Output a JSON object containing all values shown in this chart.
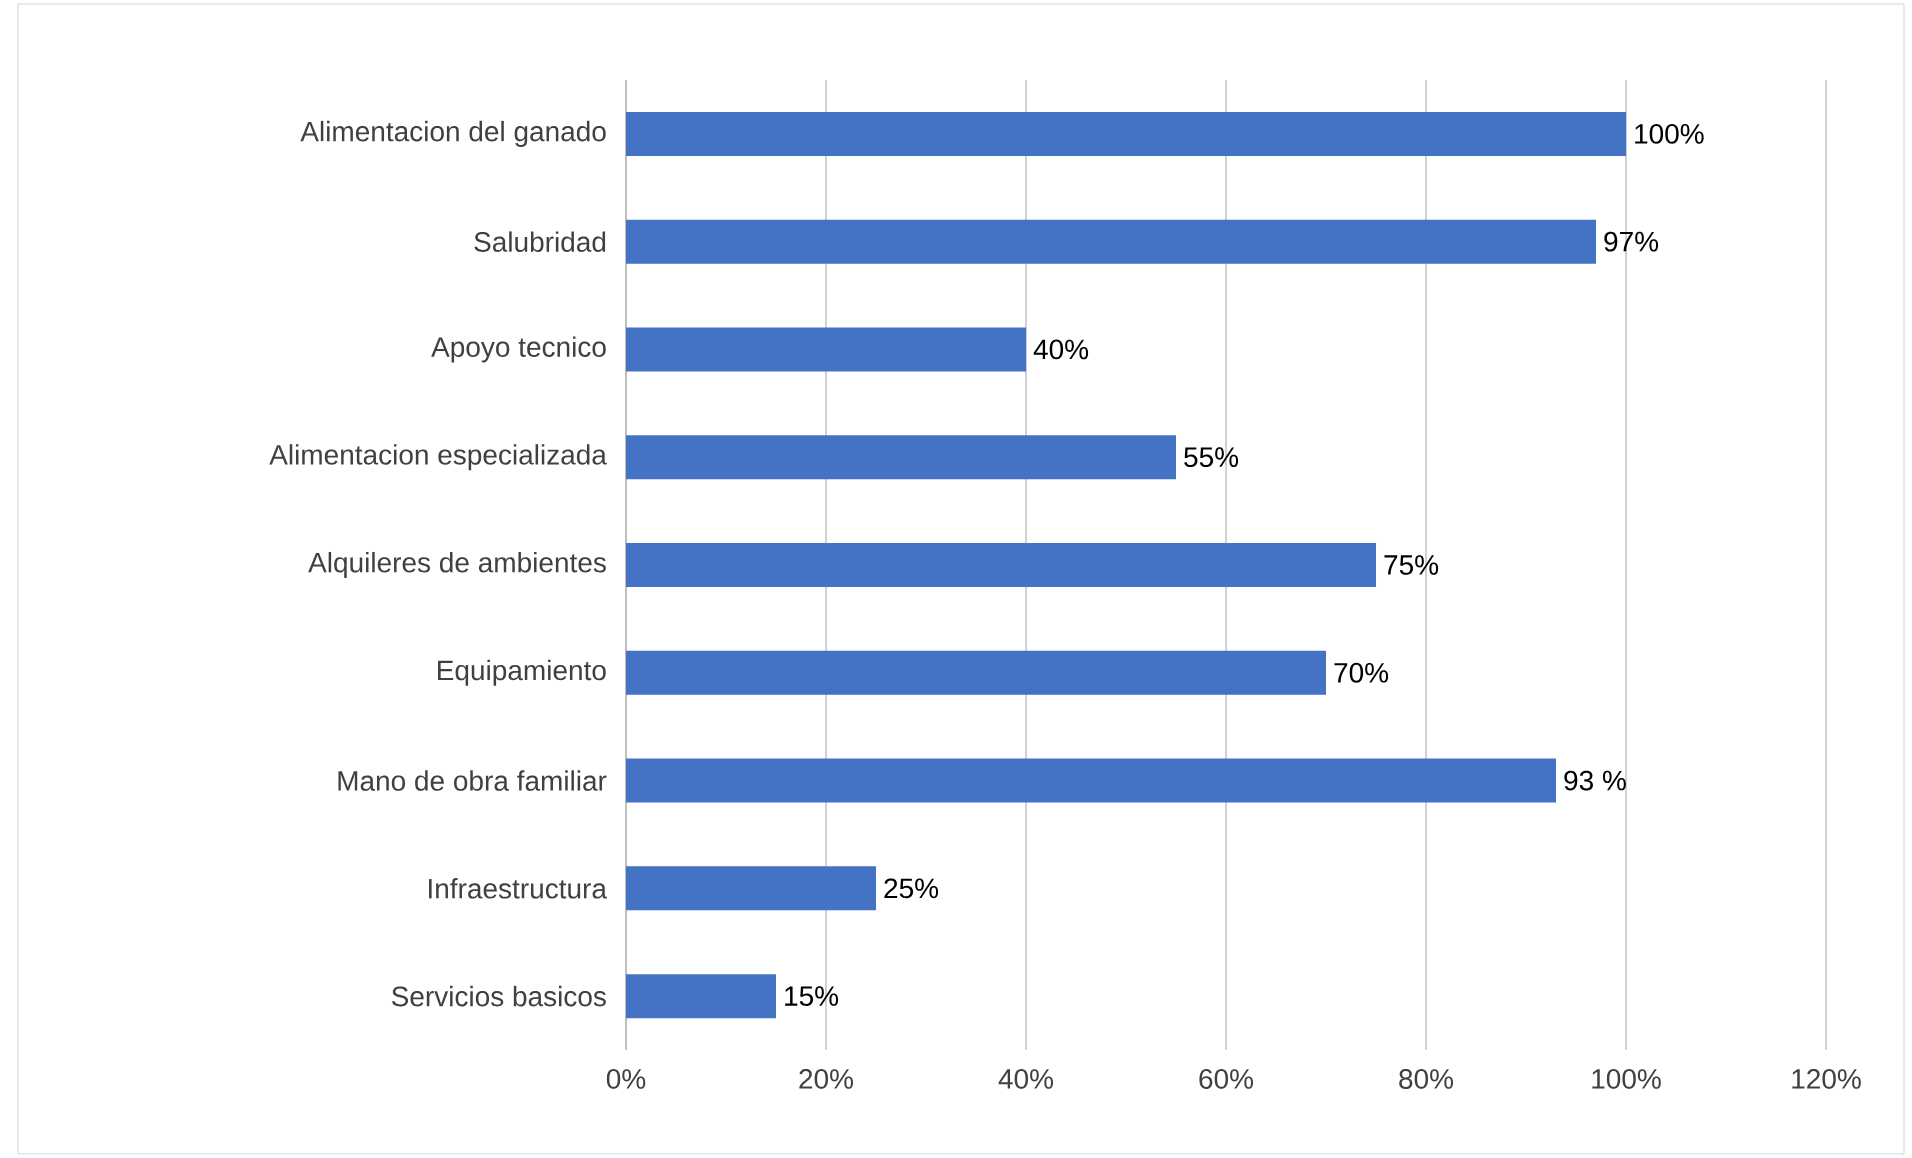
{
  "chart_data": {
    "type": "bar",
    "orientation": "horizontal",
    "categories": [
      "Alimentacion del ganado",
      "Salubridad",
      "Apoyo tecnico",
      "Alimentacion especializada",
      "Alquileres de ambientes",
      "Equipamiento",
      "Mano de obra familiar",
      "Infraestructura",
      "Servicios basicos"
    ],
    "values": [
      100,
      97,
      40,
      55,
      75,
      70,
      93,
      25,
      15
    ],
    "value_labels": [
      "100%",
      "97%",
      "40%",
      "55%",
      "75%",
      "70%",
      "93 %",
      "25%",
      "15%"
    ],
    "color": "#4472c4",
    "xlim": [
      0,
      120
    ],
    "xticks": [
      {
        "value": 0,
        "label": "0%"
      },
      {
        "value": 20,
        "label": "20%"
      },
      {
        "value": 40,
        "label": "40%"
      },
      {
        "value": 60,
        "label": "60%"
      },
      {
        "value": 80,
        "label": "80%"
      },
      {
        "value": 100,
        "label": "100%"
      },
      {
        "value": 120,
        "label": "120%"
      }
    ],
    "grid": "x"
  }
}
